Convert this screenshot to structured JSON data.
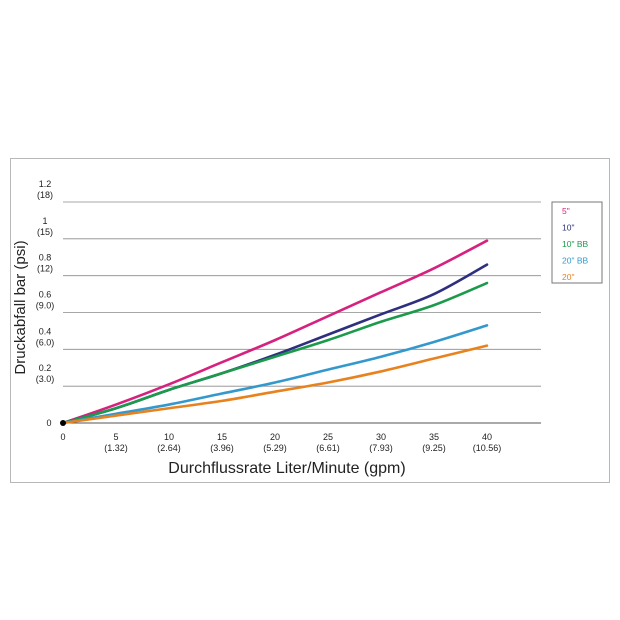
{
  "chart_data": {
    "type": "line",
    "title": "",
    "xlabel": "Durchflussrate Liter/Minute (gpm)",
    "ylabel": "Druckabfall bar (psi)",
    "xlim": [
      0,
      40
    ],
    "ylim": [
      0,
      1.2
    ],
    "grid": "horizontal",
    "legend_position": "right",
    "x_ticks": [
      {
        "value": 0,
        "label": "0",
        "sub": ""
      },
      {
        "value": 5,
        "label": "5",
        "sub": "(1.32)"
      },
      {
        "value": 10,
        "label": "10",
        "sub": "(2.64)"
      },
      {
        "value": 15,
        "label": "15",
        "sub": "(3.96)"
      },
      {
        "value": 20,
        "label": "20",
        "sub": "(5.29)"
      },
      {
        "value": 25,
        "label": "25",
        "sub": "(6.61)"
      },
      {
        "value": 30,
        "label": "30",
        "sub": "(7.93)"
      },
      {
        "value": 35,
        "label": "35",
        "sub": "(9.25)"
      },
      {
        "value": 40,
        "label": "40",
        "sub": "(10.56)"
      }
    ],
    "y_ticks": [
      {
        "value": 0,
        "label": "0",
        "sub": ""
      },
      {
        "value": 0.2,
        "label": "0.2",
        "sub": "(3.0)"
      },
      {
        "value": 0.4,
        "label": "0.4",
        "sub": "(6.0)"
      },
      {
        "value": 0.6,
        "label": "0.6",
        "sub": "(9.0)"
      },
      {
        "value": 0.8,
        "label": "0.8",
        "sub": "(12)"
      },
      {
        "value": 1.0,
        "label": "1",
        "sub": "(15)"
      },
      {
        "value": 1.2,
        "label": "1.2",
        "sub": "(18)"
      }
    ],
    "x": [
      0,
      5,
      10,
      15,
      20,
      25,
      30,
      35,
      40
    ],
    "series": [
      {
        "name": "5\"",
        "color": "#d6217e",
        "values": [
          0,
          0.1,
          0.21,
          0.33,
          0.45,
          0.58,
          0.71,
          0.84,
          0.99
        ]
      },
      {
        "name": "10\"",
        "color": "#2e2f7f",
        "values": [
          0,
          0.08,
          0.18,
          0.27,
          0.37,
          0.48,
          0.59,
          0.7,
          0.86
        ]
      },
      {
        "name": "10\" BB",
        "color": "#1c9a4b",
        "values": [
          0,
          0.08,
          0.18,
          0.27,
          0.36,
          0.45,
          0.55,
          0.64,
          0.76
        ]
      },
      {
        "name": "20\" BB",
        "color": "#3399cc",
        "values": [
          0,
          0.05,
          0.1,
          0.16,
          0.22,
          0.29,
          0.36,
          0.44,
          0.53
        ]
      },
      {
        "name": "20\"",
        "color": "#e8821e",
        "values": [
          0,
          0.04,
          0.08,
          0.12,
          0.17,
          0.22,
          0.28,
          0.35,
          0.42
        ]
      }
    ]
  }
}
